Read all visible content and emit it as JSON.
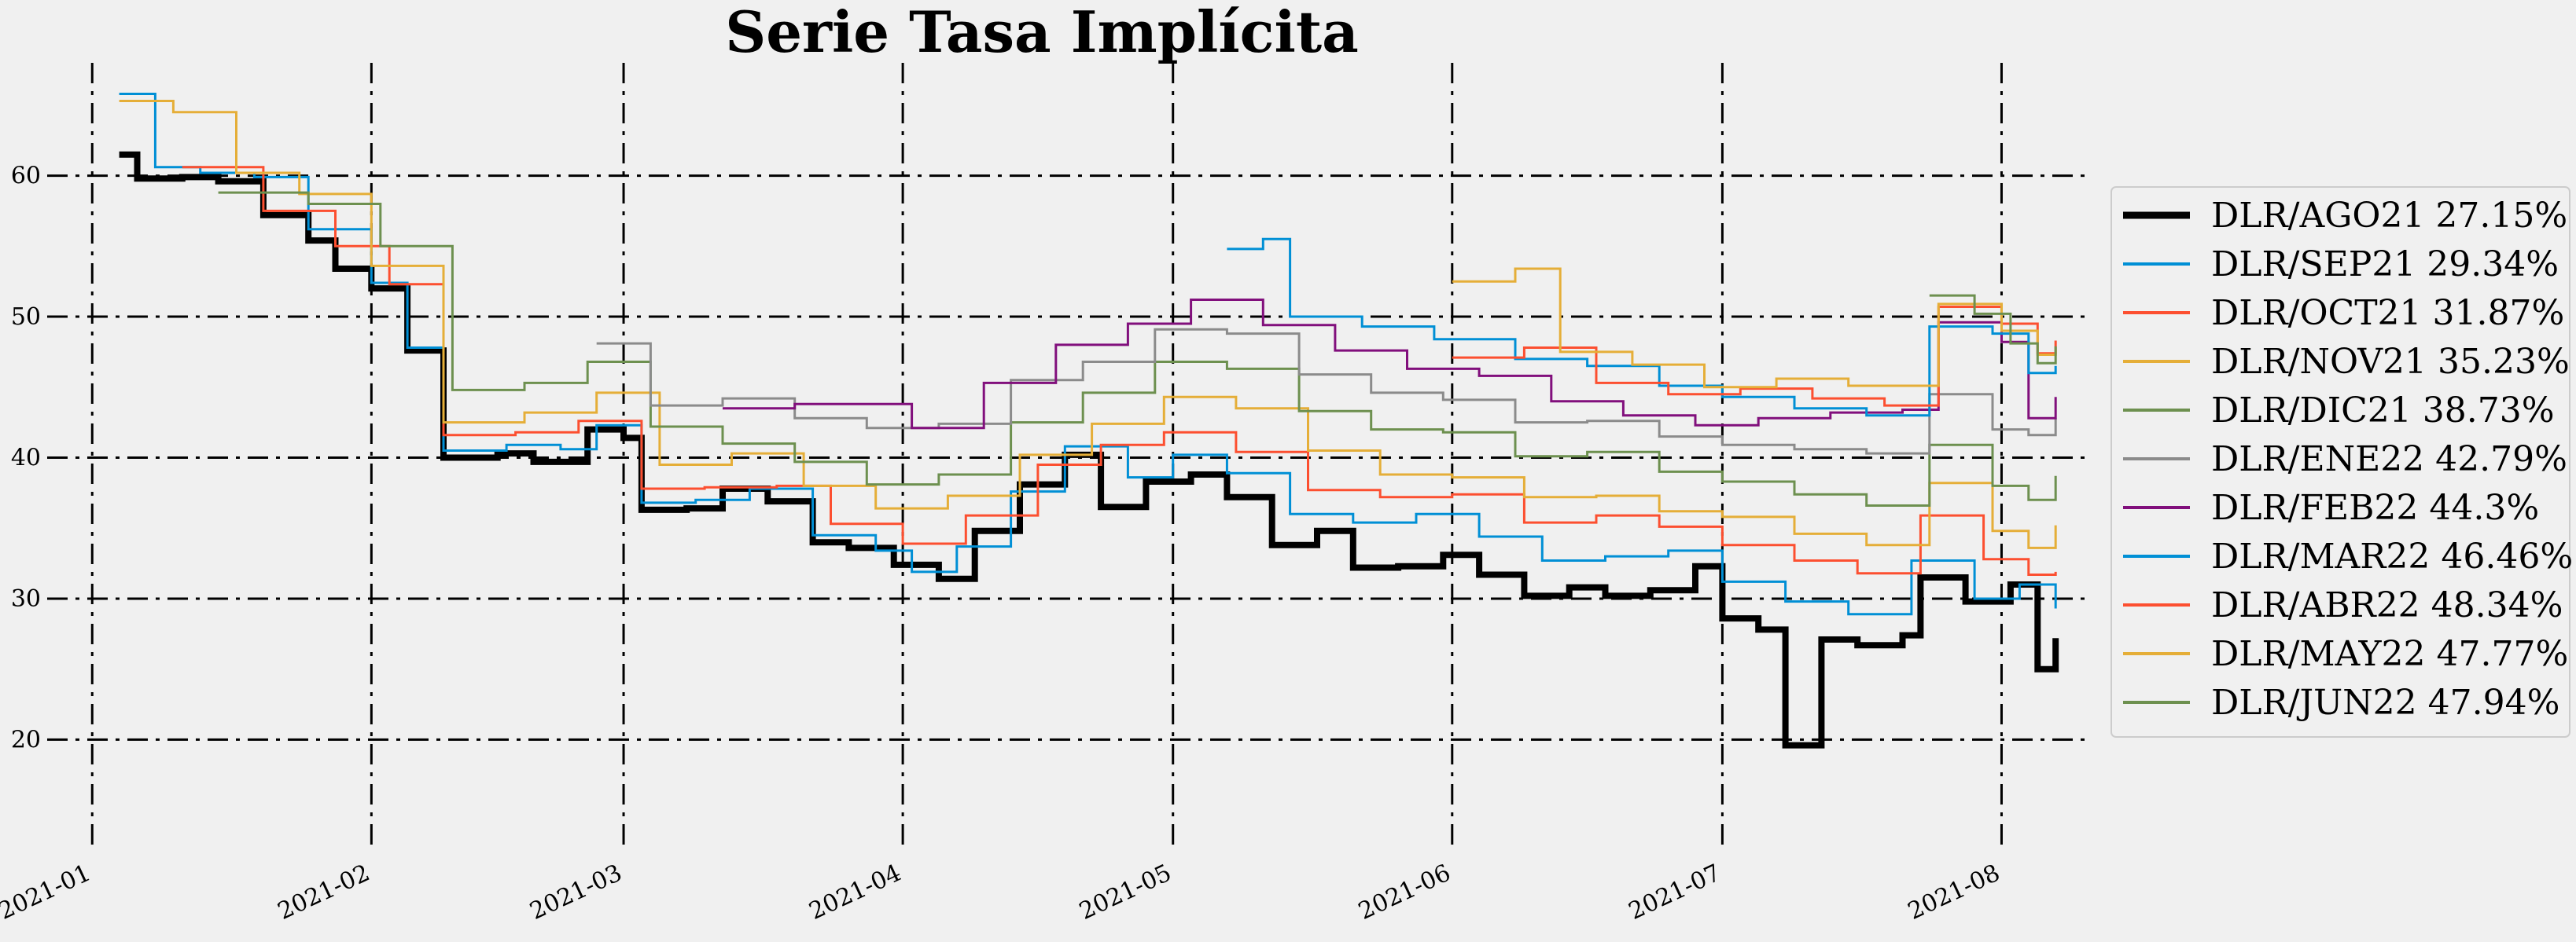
{
  "chart_data": {
    "type": "line",
    "title": "Serie Tasa Implícita",
    "xlabel": "",
    "ylabel": "",
    "x_ticks": [
      "2021-01",
      "2021-02",
      "2021-03",
      "2021-04",
      "2021-05",
      "2021-06",
      "2021-07",
      "2021-08"
    ],
    "y_ticks": [
      20,
      30,
      40,
      50,
      60
    ],
    "xlim": [
      "2020-12-27",
      "2021-08-11"
    ],
    "ylim": [
      12,
      68
    ],
    "grid": true,
    "legend_position": "right",
    "series": [
      {
        "name": "DLR/AGO21 27.15%",
        "color": "#000000",
        "linewidth": 8,
        "points": [
          [
            "2021-01-04",
            61.5
          ],
          [
            "2021-01-06",
            59.8
          ],
          [
            "2021-01-11",
            59.9
          ],
          [
            "2021-01-15",
            59.6
          ],
          [
            "2021-01-20",
            57.2
          ],
          [
            "2021-01-25",
            55.4
          ],
          [
            "2021-01-28",
            53.4
          ],
          [
            "2021-02-01",
            52.0
          ],
          [
            "2021-02-05",
            47.6
          ],
          [
            "2021-02-09",
            40.0
          ],
          [
            "2021-02-15",
            40.3
          ],
          [
            "2021-02-19",
            39.7
          ],
          [
            "2021-02-25",
            42.0
          ],
          [
            "2021-03-01",
            41.4
          ],
          [
            "2021-03-03",
            36.3
          ],
          [
            "2021-03-08",
            36.4
          ],
          [
            "2021-03-12",
            37.8
          ],
          [
            "2021-03-17",
            36.9
          ],
          [
            "2021-03-22",
            34.0
          ],
          [
            "2021-03-26",
            33.6
          ],
          [
            "2021-03-31",
            32.4
          ],
          [
            "2021-04-05",
            31.4
          ],
          [
            "2021-04-09",
            34.8
          ],
          [
            "2021-04-14",
            38.1
          ],
          [
            "2021-04-19",
            40.2
          ],
          [
            "2021-04-23",
            36.5
          ],
          [
            "2021-04-28",
            38.3
          ],
          [
            "2021-05-03",
            38.8
          ],
          [
            "2021-05-07",
            37.2
          ],
          [
            "2021-05-12",
            33.8
          ],
          [
            "2021-05-17",
            34.8
          ],
          [
            "2021-05-21",
            32.2
          ],
          [
            "2021-05-26",
            32.3
          ],
          [
            "2021-05-31",
            33.1
          ],
          [
            "2021-06-04",
            31.7
          ],
          [
            "2021-06-09",
            30.2
          ],
          [
            "2021-06-14",
            30.8
          ],
          [
            "2021-06-18",
            30.2
          ],
          [
            "2021-06-23",
            30.6
          ],
          [
            "2021-06-28",
            32.3
          ],
          [
            "2021-07-01",
            28.6
          ],
          [
            "2021-07-05",
            27.8
          ],
          [
            "2021-07-08",
            19.6
          ],
          [
            "2021-07-12",
            27.1
          ],
          [
            "2021-07-16",
            26.7
          ],
          [
            "2021-07-21",
            27.4
          ],
          [
            "2021-07-23",
            31.5
          ],
          [
            "2021-07-28",
            29.8
          ],
          [
            "2021-08-02",
            31.0
          ],
          [
            "2021-08-05",
            25.0
          ],
          [
            "2021-08-07",
            27.2
          ]
        ]
      },
      {
        "name": "DLR/SEP21 29.34%",
        "color": "#008fd5",
        "linewidth": 3,
        "points": [
          [
            "2021-01-04",
            65.8
          ],
          [
            "2021-01-08",
            60.6
          ],
          [
            "2021-01-13",
            60.2
          ],
          [
            "2021-01-19",
            59.9
          ],
          [
            "2021-01-25",
            56.2
          ],
          [
            "2021-02-01",
            52.4
          ],
          [
            "2021-02-05",
            47.8
          ],
          [
            "2021-02-09",
            40.5
          ],
          [
            "2021-02-16",
            40.9
          ],
          [
            "2021-02-22",
            40.6
          ],
          [
            "2021-02-26",
            42.3
          ],
          [
            "2021-03-03",
            36.8
          ],
          [
            "2021-03-09",
            37.0
          ],
          [
            "2021-03-15",
            37.8
          ],
          [
            "2021-03-22",
            34.5
          ],
          [
            "2021-03-29",
            33.4
          ],
          [
            "2021-04-02",
            31.9
          ],
          [
            "2021-04-07",
            33.7
          ],
          [
            "2021-04-13",
            37.6
          ],
          [
            "2021-04-19",
            40.8
          ],
          [
            "2021-04-26",
            38.6
          ],
          [
            "2021-05-01",
            40.2
          ],
          [
            "2021-05-07",
            38.9
          ],
          [
            "2021-05-14",
            36.0
          ],
          [
            "2021-05-21",
            35.4
          ],
          [
            "2021-05-28",
            36.0
          ],
          [
            "2021-06-04",
            34.4
          ],
          [
            "2021-06-11",
            32.7
          ],
          [
            "2021-06-18",
            33.0
          ],
          [
            "2021-06-25",
            33.4
          ],
          [
            "2021-07-01",
            31.2
          ],
          [
            "2021-07-08",
            29.8
          ],
          [
            "2021-07-15",
            28.9
          ],
          [
            "2021-07-22",
            32.7
          ],
          [
            "2021-07-29",
            30.0
          ],
          [
            "2021-08-03",
            31.0
          ],
          [
            "2021-08-07",
            29.3
          ]
        ]
      },
      {
        "name": "DLR/OCT21 31.87%",
        "color": "#fc4f30",
        "linewidth": 3,
        "points": [
          [
            "2021-01-11",
            60.6
          ],
          [
            "2021-01-20",
            57.5
          ],
          [
            "2021-01-28",
            55.0
          ],
          [
            "2021-02-03",
            52.3
          ],
          [
            "2021-02-09",
            41.6
          ],
          [
            "2021-02-17",
            41.8
          ],
          [
            "2021-02-24",
            42.6
          ],
          [
            "2021-03-03",
            37.8
          ],
          [
            "2021-03-10",
            37.9
          ],
          [
            "2021-03-18",
            38.0
          ],
          [
            "2021-03-24",
            35.3
          ],
          [
            "2021-04-01",
            33.9
          ],
          [
            "2021-04-08",
            35.9
          ],
          [
            "2021-04-16",
            39.5
          ],
          [
            "2021-04-23",
            40.9
          ],
          [
            "2021-04-30",
            41.8
          ],
          [
            "2021-05-08",
            40.4
          ],
          [
            "2021-05-16",
            37.7
          ],
          [
            "2021-05-24",
            37.2
          ],
          [
            "2021-06-01",
            37.4
          ],
          [
            "2021-06-09",
            35.4
          ],
          [
            "2021-06-17",
            35.9
          ],
          [
            "2021-06-24",
            35.1
          ],
          [
            "2021-07-01",
            33.8
          ],
          [
            "2021-07-09",
            32.7
          ],
          [
            "2021-07-16",
            31.8
          ],
          [
            "2021-07-23",
            35.9
          ],
          [
            "2021-07-30",
            32.8
          ],
          [
            "2021-08-04",
            31.7
          ],
          [
            "2021-08-07",
            31.9
          ]
        ]
      },
      {
        "name": "DLR/NOV21 35.23%",
        "color": "#e5ae38",
        "linewidth": 3,
        "points": [
          [
            "2021-01-04",
            65.3
          ],
          [
            "2021-01-10",
            64.5
          ],
          [
            "2021-01-17",
            60.2
          ],
          [
            "2021-01-24",
            58.7
          ],
          [
            "2021-02-01",
            53.6
          ],
          [
            "2021-02-09",
            42.5
          ],
          [
            "2021-02-18",
            43.2
          ],
          [
            "2021-02-26",
            44.6
          ],
          [
            "2021-03-05",
            39.5
          ],
          [
            "2021-03-13",
            40.3
          ],
          [
            "2021-03-21",
            38.0
          ],
          [
            "2021-03-29",
            36.4
          ],
          [
            "2021-04-06",
            37.3
          ],
          [
            "2021-04-14",
            40.2
          ],
          [
            "2021-04-22",
            42.4
          ],
          [
            "2021-04-30",
            44.3
          ],
          [
            "2021-05-08",
            43.5
          ],
          [
            "2021-05-16",
            40.5
          ],
          [
            "2021-05-24",
            38.8
          ],
          [
            "2021-06-01",
            38.6
          ],
          [
            "2021-06-09",
            37.2
          ],
          [
            "2021-06-17",
            37.3
          ],
          [
            "2021-06-24",
            36.2
          ],
          [
            "2021-07-01",
            35.8
          ],
          [
            "2021-07-09",
            34.6
          ],
          [
            "2021-07-17",
            33.8
          ],
          [
            "2021-07-24",
            38.2
          ],
          [
            "2021-07-31",
            34.8
          ],
          [
            "2021-08-04",
            33.6
          ],
          [
            "2021-08-07",
            35.2
          ]
        ]
      },
      {
        "name": "DLR/DIC21 38.73%",
        "color": "#6d904f",
        "linewidth": 3,
        "points": [
          [
            "2021-01-15",
            58.8
          ],
          [
            "2021-01-25",
            58.0
          ],
          [
            "2021-02-02",
            55.0
          ],
          [
            "2021-02-10",
            44.8
          ],
          [
            "2021-02-18",
            45.3
          ],
          [
            "2021-02-25",
            46.8
          ],
          [
            "2021-03-04",
            42.2
          ],
          [
            "2021-03-12",
            41.0
          ],
          [
            "2021-03-20",
            39.7
          ],
          [
            "2021-03-28",
            38.1
          ],
          [
            "2021-04-05",
            38.8
          ],
          [
            "2021-04-13",
            42.5
          ],
          [
            "2021-04-21",
            44.6
          ],
          [
            "2021-04-29",
            46.8
          ],
          [
            "2021-05-07",
            46.3
          ],
          [
            "2021-05-15",
            43.3
          ],
          [
            "2021-05-23",
            42.0
          ],
          [
            "2021-05-31",
            41.8
          ],
          [
            "2021-06-08",
            40.1
          ],
          [
            "2021-06-16",
            40.4
          ],
          [
            "2021-06-24",
            39.0
          ],
          [
            "2021-07-01",
            38.3
          ],
          [
            "2021-07-09",
            37.4
          ],
          [
            "2021-07-17",
            36.6
          ],
          [
            "2021-07-24",
            40.9
          ],
          [
            "2021-07-31",
            38.0
          ],
          [
            "2021-08-04",
            37.0
          ],
          [
            "2021-08-07",
            38.7
          ]
        ]
      },
      {
        "name": "DLR/ENE22 42.79%",
        "color": "#8b8b8b",
        "linewidth": 3,
        "points": [
          [
            "2021-02-26",
            48.1
          ],
          [
            "2021-03-04",
            43.7
          ],
          [
            "2021-03-12",
            44.2
          ],
          [
            "2021-03-20",
            42.8
          ],
          [
            "2021-03-28",
            42.1
          ],
          [
            "2021-04-05",
            42.4
          ],
          [
            "2021-04-13",
            45.5
          ],
          [
            "2021-04-21",
            46.8
          ],
          [
            "2021-04-29",
            49.1
          ],
          [
            "2021-05-07",
            48.8
          ],
          [
            "2021-05-15",
            45.9
          ],
          [
            "2021-05-23",
            44.6
          ],
          [
            "2021-05-31",
            44.1
          ],
          [
            "2021-06-08",
            42.5
          ],
          [
            "2021-06-16",
            42.6
          ],
          [
            "2021-06-24",
            41.5
          ],
          [
            "2021-07-01",
            40.9
          ],
          [
            "2021-07-09",
            40.6
          ],
          [
            "2021-07-17",
            40.3
          ],
          [
            "2021-07-24",
            44.5
          ],
          [
            "2021-07-31",
            42.0
          ],
          [
            "2021-08-04",
            41.6
          ],
          [
            "2021-08-07",
            42.8
          ]
        ]
      },
      {
        "name": "DLR/FEB22 44.3%",
        "color": "#810f7c",
        "linewidth": 3,
        "points": [
          [
            "2021-03-12",
            43.5
          ],
          [
            "2021-03-20",
            43.8
          ],
          [
            "2021-04-02",
            42.1
          ],
          [
            "2021-04-10",
            45.3
          ],
          [
            "2021-04-18",
            48.0
          ],
          [
            "2021-04-26",
            49.5
          ],
          [
            "2021-05-03",
            51.2
          ],
          [
            "2021-05-11",
            49.4
          ],
          [
            "2021-05-19",
            47.6
          ],
          [
            "2021-05-27",
            46.3
          ],
          [
            "2021-06-04",
            45.8
          ],
          [
            "2021-06-12",
            44.0
          ],
          [
            "2021-06-20",
            43.0
          ],
          [
            "2021-06-28",
            42.3
          ],
          [
            "2021-07-05",
            42.8
          ],
          [
            "2021-07-13",
            43.2
          ],
          [
            "2021-07-21",
            43.4
          ],
          [
            "2021-07-25",
            49.6
          ],
          [
            "2021-08-01",
            48.2
          ],
          [
            "2021-08-04",
            42.8
          ],
          [
            "2021-08-07",
            44.3
          ]
        ]
      },
      {
        "name": "DLR/MAR22 46.46%",
        "color": "#008fd5",
        "linewidth": 3,
        "points": [
          [
            "2021-05-07",
            54.8
          ],
          [
            "2021-05-11",
            55.5
          ],
          [
            "2021-05-14",
            50.0
          ],
          [
            "2021-05-22",
            49.3
          ],
          [
            "2021-05-30",
            48.4
          ],
          [
            "2021-06-08",
            47.0
          ],
          [
            "2021-06-16",
            46.5
          ],
          [
            "2021-06-24",
            45.1
          ],
          [
            "2021-07-01",
            44.3
          ],
          [
            "2021-07-09",
            43.5
          ],
          [
            "2021-07-17",
            43.0
          ],
          [
            "2021-07-24",
            49.3
          ],
          [
            "2021-07-31",
            48.8
          ],
          [
            "2021-08-04",
            46.0
          ],
          [
            "2021-08-07",
            46.5
          ]
        ]
      },
      {
        "name": "DLR/ABR22 48.34%",
        "color": "#fc4f30",
        "linewidth": 3,
        "points": [
          [
            "2021-06-01",
            47.1
          ],
          [
            "2021-06-09",
            47.8
          ],
          [
            "2021-06-17",
            45.3
          ],
          [
            "2021-06-25",
            44.5
          ],
          [
            "2021-07-03",
            44.9
          ],
          [
            "2021-07-11",
            44.2
          ],
          [
            "2021-07-19",
            43.7
          ],
          [
            "2021-07-25",
            50.7
          ],
          [
            "2021-08-01",
            49.5
          ],
          [
            "2021-08-05",
            47.4
          ],
          [
            "2021-08-07",
            48.3
          ]
        ]
      },
      {
        "name": "DLR/MAY22 47.77%",
        "color": "#e5ae38",
        "linewidth": 3,
        "points": [
          [
            "2021-06-01",
            52.5
          ],
          [
            "2021-06-08",
            53.4
          ],
          [
            "2021-06-13",
            47.5
          ],
          [
            "2021-06-21",
            46.6
          ],
          [
            "2021-06-29",
            45.0
          ],
          [
            "2021-07-07",
            45.6
          ],
          [
            "2021-07-15",
            45.1
          ],
          [
            "2021-07-25",
            50.9
          ],
          [
            "2021-08-01",
            49.0
          ],
          [
            "2021-08-05",
            47.3
          ],
          [
            "2021-08-07",
            47.8
          ]
        ]
      },
      {
        "name": "DLR/JUN22 47.94%",
        "color": "#6d904f",
        "linewidth": 3,
        "points": [
          [
            "2021-07-24",
            51.5
          ],
          [
            "2021-07-29",
            50.2
          ],
          [
            "2021-08-02",
            48.1
          ],
          [
            "2021-08-05",
            46.7
          ],
          [
            "2021-08-07",
            47.9
          ]
        ]
      }
    ]
  }
}
